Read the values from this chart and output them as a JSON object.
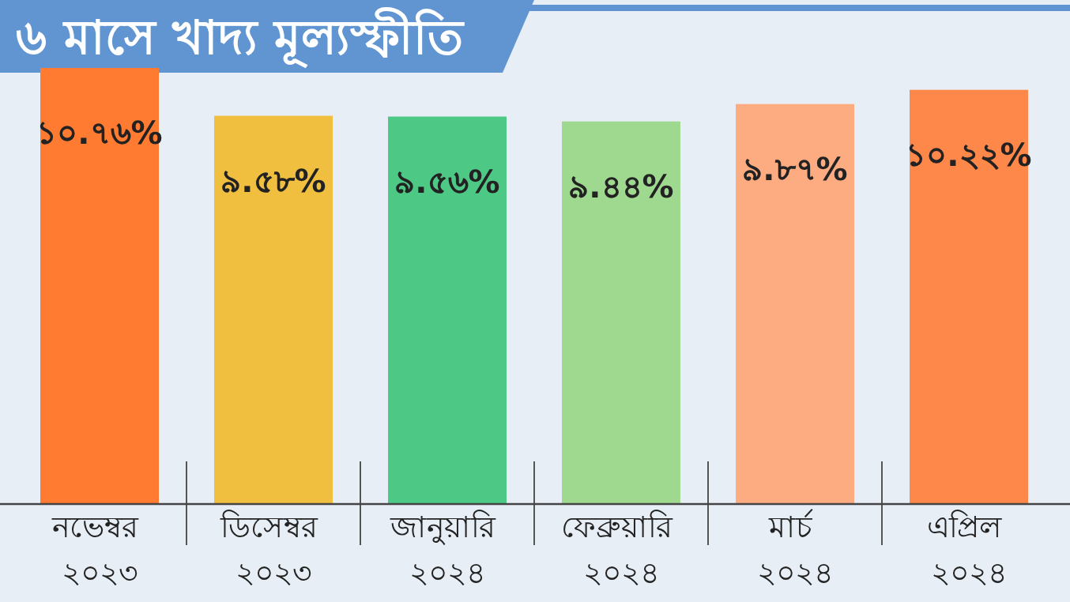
{
  "chart_data": {
    "type": "bar",
    "title": "৬ মাসে খাদ্য মূল্যস্ফীতি",
    "categories": [
      "নভেম্বর ২০২৩",
      "ডিসেম্বর ২০২৩",
      "জানুয়ারি ২০২৪",
      "ফেব্রুয়ারি ২০২৪",
      "মার্চ ২০২৪",
      "এপ্রিল ২০২৪"
    ],
    "values": [
      10.76,
      9.58,
      9.56,
      9.44,
      9.87,
      10.22
    ],
    "value_labels": [
      "১০.৭৬%",
      "৯.৫৮%",
      "৯.৫৬%",
      "৯.৪৪%",
      "৯.৮৭%",
      "১০.২২%"
    ],
    "colors": [
      "#fe7b31",
      "#f0bf40",
      "#4ec985",
      "#9fd98f",
      "#fdab80",
      "#fe884a"
    ],
    "tick_labels": "x"
  }
}
